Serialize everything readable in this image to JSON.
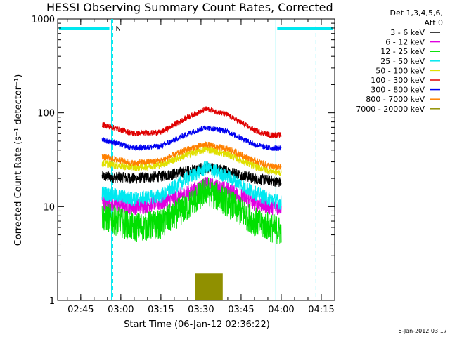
{
  "chart_data": {
    "type": "line",
    "title": "HESSI Observing Summary Count Rates, Corrected",
    "xlabel": "Start Time (06-Jan-12 02:36:22)",
    "ylabel": "Corrected Count Rate (s⁻¹ detector⁻¹)",
    "y_scale": "log",
    "ylim": [
      1,
      1000
    ],
    "xlim": [
      "02:36:22",
      "04:20:00"
    ],
    "x_tick_labels": [
      "02:45",
      "03:00",
      "03:15",
      "03:30",
      "03:45",
      "04:00",
      "04:15"
    ],
    "y_tick_labels": [
      "1",
      "10",
      "100",
      "1000"
    ],
    "legend_title": [
      "Det 1,3,4,5,6,",
      "Att 0"
    ],
    "legend_position": "outside top-right",
    "timestamp": "6-Jan-2012 03:17",
    "attenuator_flag_text": "N",
    "x_ticks_hhmm": [
      "02:45",
      "03:00",
      "03:15",
      "03:30",
      "03:45",
      "04:00",
      "04:15"
    ],
    "night_intervals": [
      {
        "start": "02:36:22",
        "end": "02:56:30"
      },
      {
        "start": "03:58:00",
        "end": "04:20:00"
      }
    ],
    "markers": {
      "solid_lines": [
        "02:56:30",
        "03:58:00"
      ],
      "dashed_lines": [
        "02:57:00",
        "04:13:00"
      ]
    },
    "series": [
      {
        "name": "3 - 6 keV",
        "color": "#000000",
        "points": [
          [
            "02:53",
            21
          ],
          [
            "03:05",
            20
          ],
          [
            "03:15",
            21
          ],
          [
            "03:25",
            24
          ],
          [
            "03:32",
            26
          ],
          [
            "03:40",
            24
          ],
          [
            "03:50",
            20
          ],
          [
            "03:56",
            19
          ],
          [
            "04:00",
            18
          ]
        ]
      },
      {
        "name": "6 - 12 keV",
        "color": "#e000e0",
        "points": [
          [
            "02:53",
            11
          ],
          [
            "03:05",
            10
          ],
          [
            "03:15",
            11
          ],
          [
            "03:25",
            14
          ],
          [
            "03:32",
            17
          ],
          [
            "03:40",
            15
          ],
          [
            "03:50",
            11
          ],
          [
            "03:56",
            10
          ],
          [
            "04:00",
            10
          ]
        ]
      },
      {
        "name": "12 - 25 keV",
        "color": "#00e000",
        "points": [
          [
            "02:53",
            8
          ],
          [
            "03:05",
            6
          ],
          [
            "03:15",
            6.5
          ],
          [
            "03:25",
            10
          ],
          [
            "03:32",
            15
          ],
          [
            "03:40",
            11
          ],
          [
            "03:50",
            7
          ],
          [
            "03:56",
            6
          ],
          [
            "04:00",
            5.5
          ]
        ]
      },
      {
        "name": "25 - 50 keV",
        "color": "#00e8f0",
        "points": [
          [
            "02:53",
            14
          ],
          [
            "03:05",
            12
          ],
          [
            "03:15",
            13
          ],
          [
            "03:25",
            20
          ],
          [
            "03:32",
            26
          ],
          [
            "03:40",
            21
          ],
          [
            "03:50",
            14
          ],
          [
            "03:56",
            12
          ],
          [
            "04:00",
            11
          ]
        ]
      },
      {
        "name": "50 - 100 keV",
        "color": "#e0e000",
        "points": [
          [
            "02:53",
            29
          ],
          [
            "03:05",
            26
          ],
          [
            "03:15",
            28
          ],
          [
            "03:25",
            36
          ],
          [
            "03:32",
            41
          ],
          [
            "03:40",
            36
          ],
          [
            "03:50",
            27
          ],
          [
            "03:56",
            24
          ],
          [
            "04:00",
            23
          ]
        ]
      },
      {
        "name": "100 - 300 keV",
        "color": "#e00000",
        "points": [
          [
            "02:53",
            75
          ],
          [
            "03:05",
            60
          ],
          [
            "03:15",
            62
          ],
          [
            "03:25",
            90
          ],
          [
            "03:32",
            110
          ],
          [
            "03:40",
            95
          ],
          [
            "03:50",
            65
          ],
          [
            "03:56",
            58
          ],
          [
            "04:00",
            58
          ]
        ]
      },
      {
        "name": "300 - 800 keV",
        "color": "#0000f0",
        "points": [
          [
            "02:53",
            52
          ],
          [
            "03:05",
            42
          ],
          [
            "03:15",
            44
          ],
          [
            "03:25",
            60
          ],
          [
            "03:32",
            70
          ],
          [
            "03:40",
            63
          ],
          [
            "03:50",
            46
          ],
          [
            "03:56",
            42
          ],
          [
            "04:00",
            42
          ]
        ]
      },
      {
        "name": "800 - 7000 keV",
        "color": "#ff8000",
        "points": [
          [
            "02:53",
            34
          ],
          [
            "03:05",
            29
          ],
          [
            "03:15",
            31
          ],
          [
            "03:25",
            41
          ],
          [
            "03:32",
            46
          ],
          [
            "03:40",
            41
          ],
          [
            "03:50",
            31
          ],
          [
            "03:56",
            27
          ],
          [
            "04:00",
            26
          ]
        ]
      },
      {
        "name": "7000 - 20000 keV",
        "color": "#909000",
        "points": [
          [
            "03:28",
            1.95
          ],
          [
            "03:30",
            1.95
          ],
          [
            "03:32",
            1.95
          ],
          [
            "03:34",
            1.95
          ],
          [
            "03:36",
            1.95
          ],
          [
            "03:38",
            1.95
          ]
        ]
      }
    ]
  },
  "colors": {
    "night_bar": "#00e8f0",
    "axes": "#000000",
    "background": "#ffffff"
  }
}
